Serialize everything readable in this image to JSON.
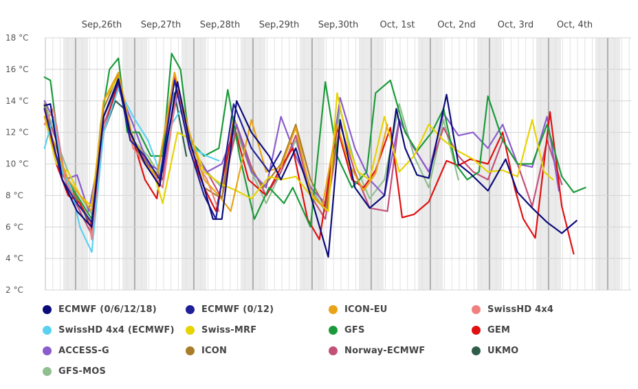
{
  "chart_data": {
    "type": "line",
    "y_unit": "°C",
    "ylim": [
      2,
      18
    ],
    "y_ticks": [
      "2 °C",
      "4 °C",
      "6 °C",
      "8 °C",
      "10 °C",
      "12 °C",
      "14 °C",
      "16 °C",
      "18 °C"
    ],
    "day_labels": [
      "Sep,26th",
      "Sep,27th",
      "Sep,28th",
      "Sep,29th",
      "Sep,30th",
      "Oct, 1st",
      "Oct, 2nd",
      "Oct, 3rd",
      "Oct, 4th"
    ],
    "grid": true,
    "legend_position": "bottom",
    "series": [
      {
        "name": "ECMWF (0/6/12/18)",
        "color": "#0a0a7a",
        "x": [
          0,
          0.1,
          0.3,
          0.55,
          0.8,
          1.0,
          1.25,
          1.45,
          1.7,
          1.95,
          2.05,
          2.25,
          2.45,
          2.7,
          2.85,
          3.0,
          3.25,
          3.5,
          3.8,
          4.0,
          4.25,
          4.5,
          4.8,
          5.0,
          5.25,
          5.5,
          5.75,
          5.95,
          6.1,
          6.3,
          6.5,
          6.8,
          7.0,
          7.2,
          7.5,
          7.8,
          8.0,
          8.25,
          8.5,
          8.75,
          9.0
        ],
        "y": [
          13.7,
          13.8,
          9.0,
          7.0,
          6.0,
          13.0,
          15.4,
          12.0,
          10.0,
          8.6,
          11.0,
          15.2,
          11.5,
          8.5,
          6.5,
          6.5,
          14.0,
          12.0,
          10.5,
          9.0,
          11.0,
          8.0,
          4.1,
          12.8,
          8.5,
          7.2,
          8.0,
          13.5,
          11.0,
          9.3,
          9.1,
          14.4,
          10.0,
          9.4,
          8.3,
          10.3,
          8.2,
          7.2,
          6.3,
          5.6,
          6.4
        ]
      },
      {
        "name": "ECMWF (0/12)",
        "color": "#1f1f9a",
        "x": [
          0,
          0.3,
          0.55,
          0.8,
          1.0,
          1.25,
          1.45,
          1.7,
          1.95,
          2.2,
          2.45,
          2.7,
          2.9,
          3.2,
          3.5,
          3.8,
          4.0
        ],
        "y": [
          13.5,
          9.0,
          7.5,
          6.3,
          13.0,
          15.2,
          11.5,
          10.5,
          9.0,
          15.3,
          11.0,
          8.0,
          6.5,
          13.8,
          11.0,
          9.5,
          10.8
        ]
      },
      {
        "name": "ICON-EU",
        "color": "#e8a317",
        "x": [
          0,
          0.2,
          0.4,
          0.6,
          0.8,
          1.0,
          1.25,
          1.5,
          1.7,
          1.9,
          2.2,
          2.45,
          2.7,
          2.95,
          3.15,
          3.5,
          3.75,
          4.0,
          4.25,
          4.5,
          4.7,
          4.95,
          5.15,
          5.4,
          5.6,
          5.8
        ],
        "y": [
          13.0,
          11.0,
          9.0,
          8.0,
          7.0,
          14.0,
          15.8,
          11.5,
          10.0,
          9.2,
          15.8,
          12.0,
          9.0,
          8.0,
          7.0,
          12.8,
          9.5,
          9.8,
          12.3,
          8.2,
          7.3,
          12.5,
          10.0,
          8.3,
          9.4,
          12.5
        ]
      },
      {
        "name": "SwissHD 4x4",
        "color": "#f08080",
        "x": [
          0,
          0.15,
          0.35,
          0.55,
          0.75,
          0.8,
          1.0,
          1.25,
          1.5,
          1.8,
          2.0,
          2.25,
          2.5,
          2.75,
          2.95
        ],
        "y": [
          12.5,
          13.5,
          9.0,
          7.5,
          6.5,
          5.2,
          13.0,
          15.2,
          11.0,
          9.5,
          8.5,
          15.0,
          10.5,
          9.0,
          7.0
        ]
      },
      {
        "name": "SwissHD 4x4 (ECMWF)",
        "color": "#5ad1f0",
        "x": [
          0,
          0.15,
          0.3,
          0.45,
          0.6,
          0.75,
          0.8,
          1.0,
          1.25,
          1.5,
          1.75,
          1.95,
          2.15,
          2.3,
          2.5,
          2.75,
          2.95
        ],
        "y": [
          11.0,
          13.0,
          9.5,
          8.5,
          6.0,
          4.8,
          4.4,
          12.0,
          14.8,
          13.0,
          11.5,
          9.5,
          12.5,
          13.4,
          11.0,
          10.5,
          10.2
        ]
      },
      {
        "name": "Swiss-MRF",
        "color": "#e6d300",
        "x": [
          0,
          0.2,
          0.4,
          0.6,
          0.8,
          1.0,
          1.25,
          1.5,
          1.8,
          2.0,
          2.25,
          2.5,
          2.7,
          3.0,
          3.25,
          3.5,
          3.8,
          4.0,
          4.25,
          4.5,
          4.8,
          4.95,
          5.15,
          5.3,
          5.5,
          5.75,
          6.0,
          6.25,
          6.5,
          6.75,
          7.0,
          7.25,
          7.5,
          7.75,
          8.0,
          8.25,
          8.45,
          8.6
        ],
        "y": [
          13.0,
          10.0,
          9.5,
          8.0,
          7.3,
          14.0,
          15.5,
          11.5,
          10.0,
          7.5,
          12.0,
          11.5,
          9.5,
          8.7,
          8.3,
          7.8,
          9.2,
          9.0,
          9.2,
          8.0,
          7.0,
          14.5,
          11.0,
          9.5,
          9.0,
          13.0,
          9.5,
          10.5,
          12.5,
          11.5,
          10.8,
          10.3,
          9.5,
          9.6,
          9.2,
          12.8,
          9.5,
          9.0
        ]
      },
      {
        "name": "GFS",
        "color": "#1a9a3a",
        "x": [
          0,
          0.1,
          0.3,
          0.55,
          0.8,
          0.95,
          1.1,
          1.25,
          1.4,
          1.6,
          1.8,
          2.0,
          2.15,
          2.3,
          2.45,
          2.7,
          2.95,
          3.1,
          3.3,
          3.55,
          3.8,
          4.05,
          4.2,
          4.5,
          4.75,
          4.95,
          5.2,
          5.45,
          5.6,
          5.85,
          6.1,
          6.3,
          6.55,
          6.75,
          6.95,
          7.15,
          7.35,
          7.5,
          7.75,
          8.0,
          8.25,
          8.5,
          8.75,
          8.95,
          9.15
        ],
        "y": [
          15.5,
          15.3,
          9.5,
          8.0,
          6.5,
          12.5,
          16.0,
          16.7,
          12.0,
          12.0,
          10.5,
          10.5,
          17.0,
          16.0,
          11.5,
          10.5,
          11.0,
          14.7,
          10.5,
          6.5,
          8.5,
          7.5,
          8.5,
          6.0,
          15.2,
          10.5,
          8.5,
          9.5,
          14.5,
          15.3,
          12.0,
          10.8,
          12.0,
          13.5,
          10.0,
          9.0,
          9.5,
          14.3,
          11.5,
          10.0,
          10.0,
          12.5,
          9.2,
          8.2,
          8.5
        ]
      },
      {
        "name": "GEM",
        "color": "#e01010",
        "x": [
          0,
          0.2,
          0.4,
          0.6,
          0.8,
          1.0,
          1.25,
          1.5,
          1.7,
          1.9,
          2.2,
          2.45,
          2.7,
          2.9,
          3.2,
          3.45,
          3.75,
          4.0,
          4.2,
          4.45,
          4.65,
          4.95,
          5.2,
          5.4,
          5.6,
          5.85,
          6.05,
          6.25,
          6.5,
          6.8,
          7.0,
          7.2,
          7.5,
          7.75,
          7.95,
          8.1,
          8.3,
          8.55,
          8.75,
          8.95
        ],
        "y": [
          13.5,
          10.0,
          8.0,
          7.5,
          6.0,
          12.0,
          15.2,
          11.5,
          9.0,
          7.8,
          15.5,
          11.0,
          8.5,
          7.0,
          12.5,
          9.0,
          8.0,
          9.8,
          11.0,
          6.5,
          5.2,
          12.3,
          9.0,
          8.5,
          9.6,
          12.3,
          6.6,
          6.8,
          7.6,
          10.2,
          9.9,
          10.3,
          10.0,
          12.0,
          8.5,
          6.5,
          5.3,
          13.3,
          7.3,
          4.3
        ]
      },
      {
        "name": "ACCESS-G",
        "color": "#8a5ccc",
        "x": [
          0,
          0.2,
          0.35,
          0.55,
          0.75,
          1.0,
          1.25,
          1.5,
          1.75,
          2.0,
          2.25,
          2.5,
          2.75,
          3.0,
          3.25,
          3.5,
          3.75,
          4.0,
          4.25,
          4.5,
          4.75,
          5.0,
          5.25,
          5.5,
          5.75,
          6.0,
          6.25,
          6.5,
          6.75,
          7.0,
          7.25,
          7.5,
          7.75,
          8.0,
          8.25,
          8.5,
          8.7
        ],
        "y": [
          14.0,
          12.5,
          9.0,
          9.3,
          7.0,
          12.0,
          14.8,
          12.5,
          10.0,
          9.5,
          14.5,
          11.0,
          9.5,
          10.0,
          12.5,
          9.5,
          8.5,
          13.0,
          10.5,
          8.5,
          7.5,
          14.2,
          11.0,
          9.0,
          8.0,
          12.8,
          11.0,
          9.5,
          13.2,
          11.8,
          12.0,
          11.0,
          12.5,
          10.0,
          9.8,
          13.0,
          8.3
        ]
      },
      {
        "name": "ICON",
        "color": "#a87c28",
        "x": [
          0,
          0.2,
          0.4,
          0.6,
          0.8,
          1.0,
          1.25,
          1.5,
          1.7,
          1.9,
          2.2,
          2.45,
          2.7,
          3.0,
          3.2,
          3.45,
          3.7,
          4.0,
          4.25,
          4.5,
          4.75,
          5.0
        ],
        "y": [
          13.8,
          10.5,
          8.8,
          7.5,
          6.2,
          13.5,
          15.7,
          11.0,
          10.2,
          9.0,
          15.8,
          11.5,
          8.5,
          7.8,
          13.0,
          10.0,
          8.5,
          10.0,
          12.5,
          9.0,
          7.2,
          12.5
        ]
      },
      {
        "name": "Norway-ECMWF",
        "color": "#c25078",
        "x": [
          0,
          0.2,
          0.4,
          0.6,
          0.8,
          1.0,
          1.25,
          1.5,
          1.75,
          2.0,
          2.25,
          2.5,
          2.75,
          3.0,
          3.25,
          3.5,
          3.75,
          4.0,
          4.25,
          4.5,
          4.75,
          5.0,
          5.25,
          5.5,
          5.8,
          6.0,
          6.25,
          6.5,
          6.75,
          7.0,
          7.25,
          7.5,
          7.75,
          8.0,
          8.25,
          8.5,
          8.75
        ],
        "y": [
          13.5,
          11.5,
          8.5,
          7.0,
          5.5,
          12.5,
          15.0,
          11.5,
          10.0,
          9.0,
          15.0,
          10.5,
          9.5,
          7.8,
          12.5,
          9.8,
          8.0,
          9.5,
          11.8,
          8.0,
          6.5,
          12.5,
          9.5,
          7.2,
          7.0,
          12.8,
          11.0,
          9.5,
          12.3,
          10.5,
          9.5,
          9.0,
          11.5,
          10.0,
          7.3,
          11.5,
          8.7
        ]
      },
      {
        "name": "UKMO",
        "color": "#2e5e4a",
        "x": [
          0,
          0.2,
          0.4,
          0.6,
          0.8,
          1.0,
          1.2,
          1.35,
          1.55,
          1.8,
          2.0,
          2.2,
          2.4
        ],
        "y": [
          13.7,
          10.5,
          8.5,
          7.5,
          5.8,
          12.0,
          14.0,
          13.5,
          11.0,
          9.5,
          8.5,
          14.5,
          10.5
        ]
      },
      {
        "name": "GFS-MOS",
        "color": "#8fbf8f",
        "x": [
          0,
          0.2,
          0.4,
          0.6,
          0.8,
          1.0,
          1.25,
          1.5,
          1.75,
          2.0,
          2.25,
          2.5,
          2.75,
          3.0,
          3.25,
          3.5,
          3.75,
          4.0,
          4.25,
          4.5,
          4.75,
          5.0,
          5.25,
          5.5,
          5.75,
          6.0,
          6.25,
          6.5,
          6.75,
          7.0
        ],
        "y": [
          14.0,
          11.5,
          9.5,
          8.0,
          6.8,
          13.0,
          15.0,
          11.5,
          10.5,
          9.0,
          14.8,
          11.0,
          9.5,
          8.5,
          12.0,
          9.5,
          7.5,
          9.5,
          11.5,
          8.5,
          7.0,
          13.5,
          10.0,
          7.8,
          9.0,
          13.8,
          10.5,
          8.5,
          12.8,
          9.0
        ]
      }
    ]
  }
}
